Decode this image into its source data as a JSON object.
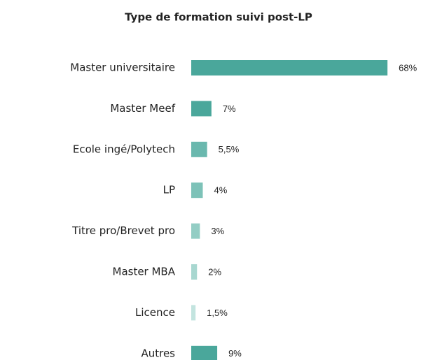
{
  "chart_data": {
    "type": "bar",
    "orientation": "horizontal",
    "title": "Type de formation suivi post-LP",
    "categories": [
      "Master universitaire",
      "Master Meef",
      "Ecole ingé/Polytech",
      "LP",
      "Titre pro/Brevet pro",
      "Master MBA",
      "Licence",
      "Autres"
    ],
    "values": [
      68,
      7,
      5.5,
      4,
      3,
      2,
      1.5,
      9
    ],
    "value_labels": [
      "68%",
      "7%",
      "5,5%",
      "4%",
      "3%",
      "2%",
      "1,5%",
      "9%"
    ],
    "colors": [
      "#4aa79b",
      "#4aa79b",
      "#6ab8ae",
      "#7dc2b8",
      "#93cdc4",
      "#a8d7d0",
      "#c3e4df",
      "#4aa79b"
    ]
  }
}
